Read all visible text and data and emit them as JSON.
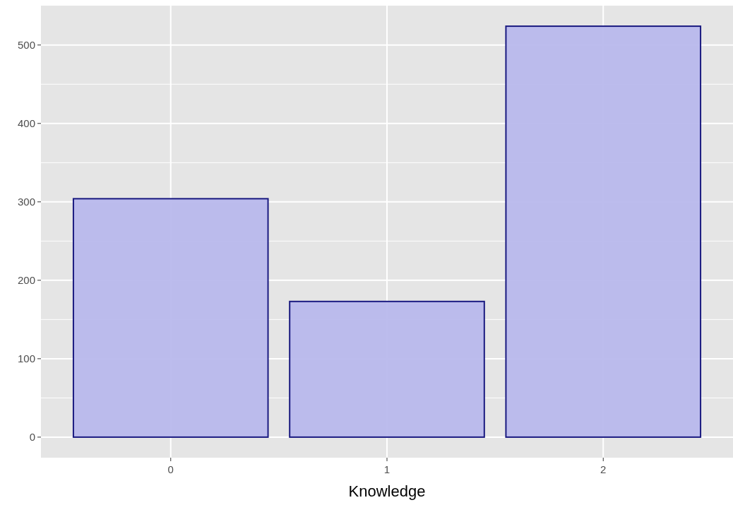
{
  "chart_data": {
    "type": "bar",
    "xlabel": "Knowledge",
    "categories": [
      "0",
      "1",
      "2"
    ],
    "series": [
      {
        "color": "#b8b8ec",
        "values": [
          304,
          173,
          524
        ]
      }
    ],
    "ylim": [
      -26.2,
      550.2
    ],
    "yticks": [
      0,
      {
        "value": 50,
        "label": null
      },
      100,
      {
        "value": 150,
        "label": null
      },
      200,
      {
        "value": 250,
        "label": null
      },
      300,
      {
        "value": 350,
        "label": null
      },
      400,
      {
        "value": 450,
        "label": null
      },
      500
    ],
    "grid": true
  }
}
